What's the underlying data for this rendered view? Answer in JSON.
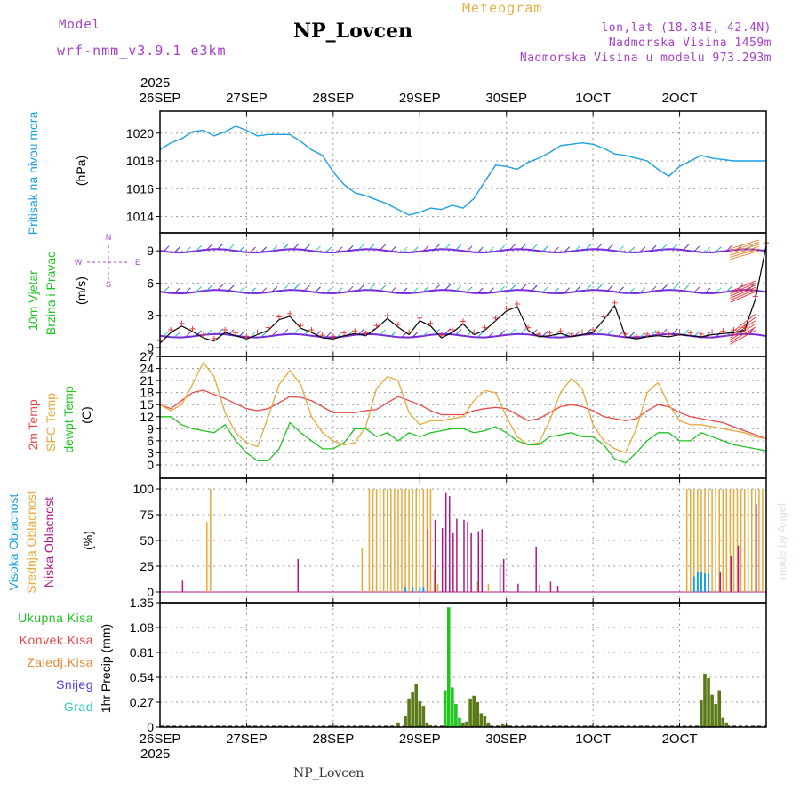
{
  "header": {
    "model_label": "Model",
    "model_value": "wrf-nmm_v3.9.1 e3km",
    "station": "NP_Lovcen",
    "chart_kind": "Meteogram",
    "coords": "lon,lat (18.84E, 42.4N)",
    "elevation": "Nadmorska Visina 1459m",
    "model_elevation": "Nadmorska Visina u modelu 973.293m"
  },
  "footer": {
    "station": "NP_Lovcen"
  },
  "watermark": "made by Angel",
  "colors": {
    "pressure": "#1aa0e0",
    "wind_speed": "#000000",
    "gust_marker": "#ee3a3a",
    "temp_2m": "#e84848",
    "temp_sfc": "#e8a838",
    "dewpoint": "#22c422",
    "cloud_high": "#1aa0e0",
    "cloud_mid": "#e8a838",
    "cloud_low": "#b01888",
    "precip_total": "#22c422",
    "precip_total_dark": "#5a7a18"
  },
  "chart_data": [
    {
      "type": "line",
      "title": "Pritisak na nivou mora",
      "ylabel": "(hPa)",
      "ylim": [
        1013.2,
        1021.2
      ],
      "yticks": [
        1014,
        1016,
        1018,
        1020
      ],
      "x_top_labels": [
        "26SEP",
        "27SEP",
        "28SEP",
        "29SEP",
        "30SEP",
        "1OCT",
        "2OCT"
      ],
      "x_top_year": "2025",
      "x": [
        0,
        3,
        6,
        9,
        12,
        15,
        18,
        21,
        24,
        27,
        30,
        33,
        36,
        39,
        42,
        45,
        48,
        51,
        54,
        57,
        60,
        63,
        66,
        69,
        72,
        75,
        78,
        81,
        84,
        87,
        90,
        93,
        96,
        99,
        102,
        105,
        108,
        111,
        114,
        117,
        120,
        123,
        126,
        129,
        132,
        135,
        138,
        141,
        144,
        147,
        150,
        153,
        156,
        159,
        162,
        165,
        168
      ],
      "series": [
        {
          "name": "Pritisak",
          "values": [
            1018.8,
            1019.3,
            1019.6,
            1020.1,
            1020.2,
            1019.8,
            1020.1,
            1020.5,
            1020.2,
            1019.8,
            1019.9,
            1019.9,
            1019.9,
            1019.4,
            1018.8,
            1018.4,
            1017.2,
            1016.3,
            1015.7,
            1015.5,
            1015.2,
            1014.9,
            1014.5,
            1014.1,
            1014.3,
            1014.6,
            1014.5,
            1014.8,
            1014.6,
            1015.3,
            1016.5,
            1017.7,
            1017.6,
            1017.4,
            1017.9,
            1018.2,
            1018.6,
            1019.1,
            1019.2,
            1019.3,
            1019.2,
            1018.9,
            1018.5,
            1018.4,
            1018.2,
            1018.0,
            1017.4,
            1016.9,
            1017.6,
            1018.0,
            1018.4,
            1018.2,
            1018.1,
            1018.0,
            1018.0,
            1018.0,
            1018.0
          ]
        }
      ]
    },
    {
      "type": "line",
      "title": "10m Vjetar Brzina i Pravac",
      "ylabel": "(m/s)",
      "ylim": [
        0,
        10.5
      ],
      "yticks": [
        0,
        3,
        6,
        9
      ],
      "compass": {
        "north": "N",
        "south": "S",
        "east": "E",
        "west": "W"
      },
      "x": [
        0,
        3,
        6,
        9,
        12,
        15,
        18,
        21,
        24,
        27,
        30,
        33,
        36,
        39,
        42,
        45,
        48,
        51,
        54,
        57,
        60,
        63,
        66,
        69,
        72,
        75,
        78,
        81,
        84,
        87,
        90,
        93,
        96,
        99,
        102,
        105,
        108,
        111,
        114,
        117,
        120,
        123,
        126,
        129,
        132,
        135,
        138,
        141,
        144,
        147,
        150,
        153,
        156,
        159,
        162,
        165,
        168
      ],
      "series": [
        {
          "name": "Brzina",
          "values": [
            0.4,
            1.4,
            2.0,
            1.5,
            0.9,
            0.6,
            1.4,
            1.1,
            0.8,
            1.2,
            1.6,
            2.6,
            2.9,
            1.8,
            1.4,
            0.9,
            0.8,
            1.1,
            1.3,
            1.1,
            1.8,
            2.7,
            1.9,
            1.2,
            2.5,
            2.0,
            0.9,
            1.4,
            2.2,
            1.2,
            1.6,
            2.5,
            3.4,
            3.8,
            1.6,
            1.0,
            1.1,
            1.3,
            1.0,
            1.2,
            1.4,
            2.6,
            3.9,
            1.0,
            0.8,
            1.0,
            1.1,
            1.0,
            1.2,
            1.1,
            1.0,
            1.2,
            1.3,
            1.4,
            1.6,
            4.5,
            9.5
          ]
        }
      ]
    },
    {
      "type": "line",
      "title": "2m Temp / SFC Temp / dewpt Temp",
      "ylabel": "(C)",
      "ylim": [
        -2,
        27
      ],
      "yticks": [
        0,
        3,
        6,
        9,
        12,
        15,
        18,
        21,
        24,
        27
      ],
      "x": [
        0,
        3,
        6,
        9,
        12,
        15,
        18,
        21,
        24,
        27,
        30,
        33,
        36,
        39,
        42,
        45,
        48,
        51,
        54,
        57,
        60,
        63,
        66,
        69,
        72,
        75,
        78,
        81,
        84,
        87,
        90,
        93,
        96,
        99,
        102,
        105,
        108,
        111,
        114,
        117,
        120,
        123,
        126,
        129,
        132,
        135,
        138,
        141,
        144,
        147,
        150,
        153,
        156,
        159,
        162,
        165,
        168
      ],
      "series": [
        {
          "name": "2m Temp",
          "values": [
            15,
            14,
            16,
            18,
            18.6,
            17.5,
            16.5,
            15.2,
            14,
            13.5,
            14,
            15.5,
            17,
            16.8,
            16,
            14.5,
            13,
            13,
            13,
            13.5,
            13.8,
            15.5,
            17,
            16,
            15,
            13.5,
            12.5,
            12.5,
            12.5,
            13.5,
            14,
            14.3,
            14,
            12.5,
            11,
            11.5,
            13,
            14.5,
            15,
            14.5,
            13.5,
            12,
            11.5,
            11,
            11.5,
            13.5,
            15,
            14.5,
            13,
            12,
            11.5,
            11,
            10.5,
            9.5,
            8.5,
            7.5,
            6.5
          ]
        },
        {
          "name": "SFC Temp",
          "values": [
            15,
            13.5,
            15,
            20,
            25.5,
            22,
            13,
            8,
            5.5,
            4.5,
            12,
            20,
            23.5,
            20,
            12,
            8,
            6,
            5,
            5.5,
            9.5,
            19,
            22,
            21,
            13,
            10,
            11,
            11,
            11.5,
            12,
            16,
            18.5,
            18,
            12,
            7,
            5,
            5.5,
            11,
            18,
            21.5,
            19,
            10,
            6,
            4,
            3,
            9,
            18,
            20.5,
            15,
            11,
            10,
            10,
            9.5,
            9,
            8.5,
            8,
            7,
            6.5
          ]
        },
        {
          "name": "dewpt Temp",
          "values": [
            12,
            12,
            10,
            9,
            8.5,
            8,
            10,
            6,
            3,
            1,
            1,
            4,
            10.5,
            8,
            6,
            4,
            4,
            5.5,
            9,
            9,
            7,
            8,
            6,
            8,
            7,
            8,
            8.5,
            9,
            9,
            8,
            8.5,
            9.5,
            8,
            6,
            5,
            5,
            7,
            7.5,
            8,
            7,
            7,
            5,
            1.5,
            0.5,
            3,
            6,
            8,
            8,
            6,
            6,
            8,
            7,
            6,
            5,
            4.5,
            4,
            3.5
          ]
        }
      ]
    },
    {
      "type": "bar",
      "title": "Visoka Oblacnost / Srednja Oblacnost / Niska Oblacnost",
      "ylabel": "(%)",
      "ylim": [
        0,
        100
      ],
      "yticks": [
        0,
        25,
        50,
        75,
        100
      ],
      "series": [
        {
          "name": "Srednja Oblacnost",
          "x": [
            13,
            14,
            56,
            58,
            59,
            60,
            61,
            62,
            63,
            64,
            65,
            66,
            67,
            68,
            69,
            70,
            71,
            72,
            73,
            74,
            75,
            76,
            77,
            88,
            91,
            146,
            147,
            148,
            149,
            150,
            151,
            152,
            153,
            154,
            155,
            156,
            157,
            158,
            159,
            160,
            161,
            162,
            163,
            164,
            165,
            166,
            167
          ],
          "values": [
            68,
            100,
            43,
            100,
            100,
            100,
            100,
            100,
            100,
            100,
            100,
            100,
            100,
            100,
            100,
            100,
            100,
            100,
            100,
            100,
            100,
            22,
            8,
            10,
            8,
            100,
            100,
            100,
            100,
            100,
            100,
            100,
            100,
            100,
            100,
            100,
            100,
            100,
            100,
            100,
            100,
            100,
            100,
            100,
            100,
            100,
            100
          ]
        },
        {
          "name": "Niska Oblacnost",
          "x": [
            6,
            38,
            74,
            76,
            78,
            79,
            80,
            81,
            82,
            84,
            85,
            86,
            88,
            89,
            94,
            95,
            99,
            104,
            105,
            108,
            110,
            155,
            158,
            160,
            165
          ],
          "values": [
            11,
            32,
            61,
            70,
            62,
            96,
            93,
            57,
            71,
            70,
            68,
            57,
            59,
            61,
            28,
            32,
            8,
            44,
            7,
            10,
            6,
            20,
            35,
            45,
            85
          ]
        },
        {
          "name": "Visoka Oblacnost",
          "x": [
            68,
            70,
            72,
            73,
            148,
            149,
            150,
            151,
            152
          ],
          "values": [
            5,
            5,
            5,
            5,
            15,
            20,
            20,
            18,
            18
          ]
        }
      ]
    },
    {
      "type": "bar",
      "title": "Ukupna Kisa / Konvek.Kisa / Zaledj.Kisa / Snijeg / Grad",
      "ylabel": "1hr Precip (mm)",
      "ylim": [
        0,
        1.35
      ],
      "yticks": [
        0,
        0.27,
        0.54,
        0.81,
        1.08,
        1.35
      ],
      "x_bottom_labels": [
        "26SEP",
        "27SEP",
        "28SEP",
        "29SEP",
        "30SEP",
        "1OCT",
        "2OCT"
      ],
      "x_bottom_year": "2025",
      "legend": [
        "Ukupna Kisa",
        "Konvek.Kisa",
        "Zaledj.Kisa",
        "Snijeg",
        "Grad"
      ],
      "series": [
        {
          "name": "Ukupna Kisa",
          "x": [
            66,
            68,
            69,
            70,
            71,
            72,
            73,
            74,
            75,
            79,
            80,
            81,
            82,
            83,
            84,
            85,
            86,
            87,
            88,
            89,
            90,
            91,
            95,
            96,
            150,
            151,
            152,
            153,
            154,
            155,
            156,
            157
          ],
          "values": [
            0.05,
            0.12,
            0.31,
            0.38,
            0.47,
            0.28,
            0.23,
            0.05,
            0.02,
            0.4,
            1.3,
            0.43,
            0.25,
            0.1,
            0.05,
            0.06,
            0.31,
            0.34,
            0.27,
            0.15,
            0.12,
            0.05,
            0.04,
            0.02,
            0.3,
            0.58,
            0.53,
            0.35,
            0.25,
            0.4,
            0.1,
            0.05
          ]
        }
      ]
    }
  ],
  "panel_labels": {
    "pressure": [
      "Pritisak na nivou mora",
      "(hPa)"
    ],
    "wind": [
      "10m Vjetar",
      "Brzina i Pravac",
      "(m/s)"
    ],
    "temp": [
      "2m Temp",
      "SFC Temp",
      "dewpt Temp",
      "(C)"
    ],
    "cloud": [
      "Visoka Oblacnost",
      "Srednja Oblacnost",
      "Niska Oblacnost",
      "(%)"
    ],
    "precip": [
      "Ukupna Kisa",
      "Konvek.Kisa",
      "Zaledj.Kisa",
      "Snijeg",
      "Grad",
      "1hr Precip (mm)"
    ]
  }
}
